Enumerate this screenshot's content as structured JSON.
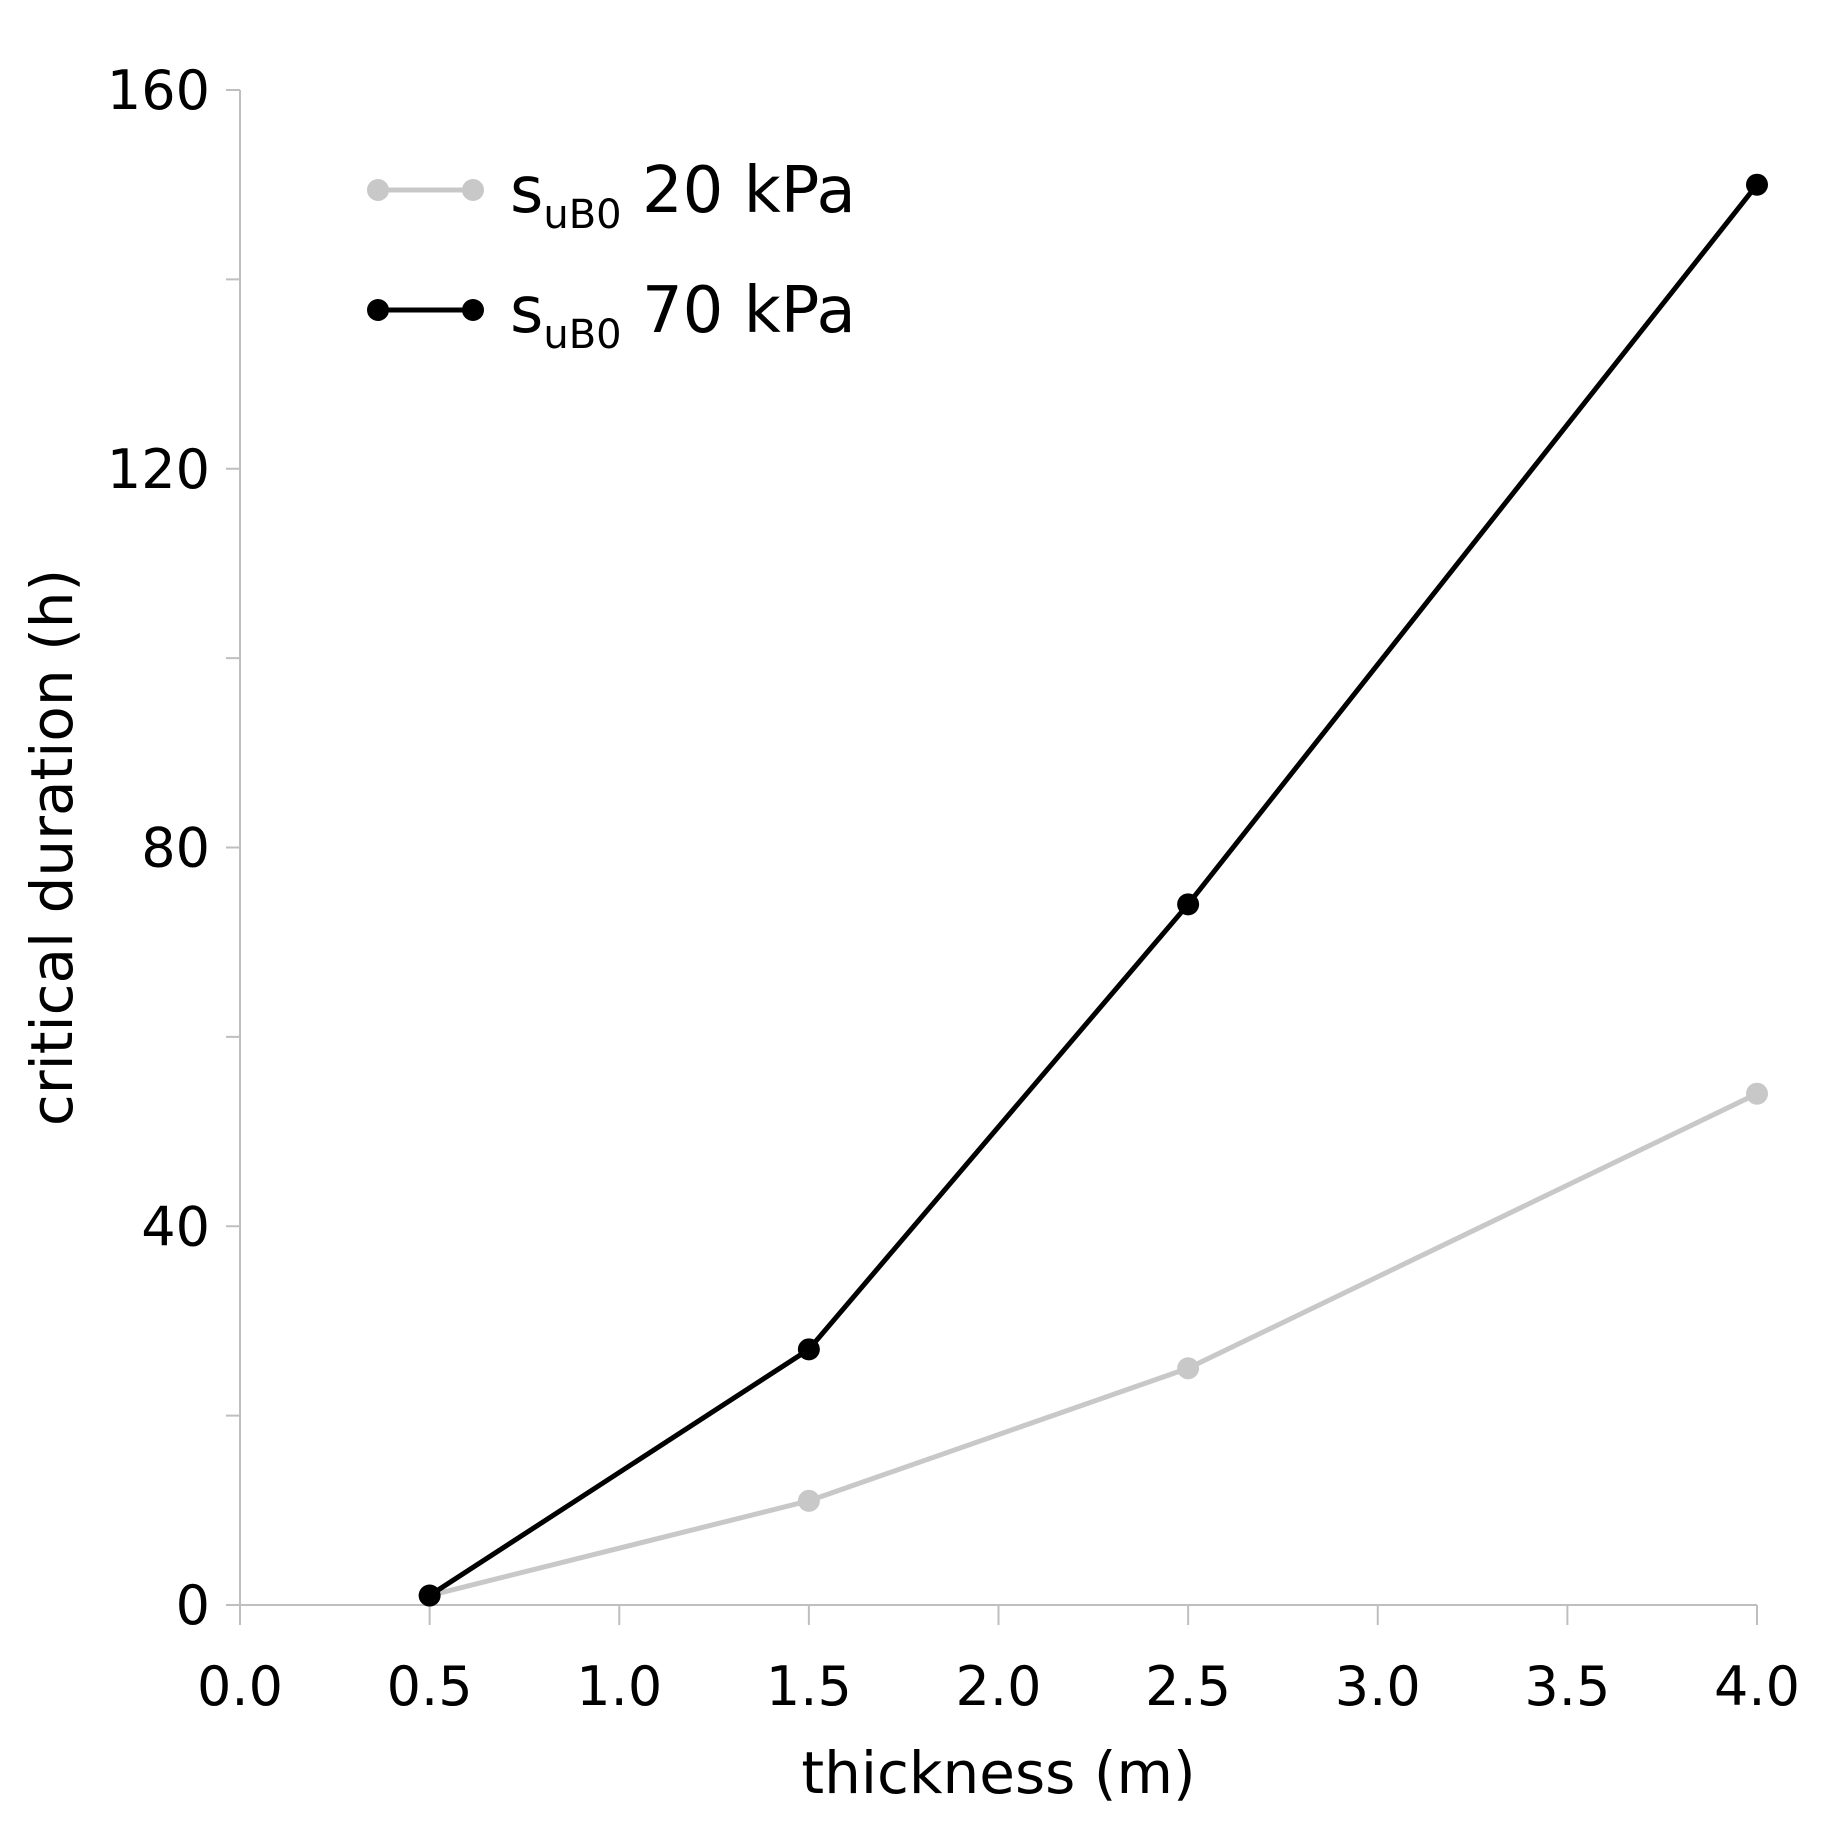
{
  "chart_data": {
    "type": "line",
    "title": "",
    "xlabel": "thickness (m)",
    "ylabel": "critical duration (h)",
    "xlim": [
      0.0,
      4.0
    ],
    "ylim": [
      0,
      160
    ],
    "x_ticks": [
      0.0,
      0.5,
      1.0,
      1.5,
      2.0,
      2.5,
      3.0,
      3.5,
      4.0
    ],
    "x_tick_labels": [
      "0.0",
      "0.5",
      "1.0",
      "1.5",
      "2.0",
      "2.5",
      "3.0",
      "3.5",
      "4.0"
    ],
    "y_ticks": [
      0,
      20,
      40,
      60,
      80,
      100,
      120,
      140,
      160
    ],
    "y_tick_labels": [
      "0",
      "",
      "40",
      "",
      "80",
      "",
      "120",
      "",
      "160"
    ],
    "grid": false,
    "legend_position": "top-left",
    "series": [
      {
        "name": "s_uB0 20 kPa",
        "label_main": "s",
        "label_sub": "uB0",
        "label_rest": " 20 kPa",
        "color": "#c8c8c8",
        "x": [
          0.5,
          1.5,
          2.5,
          4.0
        ],
        "y": [
          1,
          11,
          25,
          54
        ]
      },
      {
        "name": "s_uB0 70 kPa",
        "label_main": "s",
        "label_sub": "uB0",
        "label_rest": " 70 kPa",
        "color": "#000000",
        "x": [
          0.5,
          1.5,
          2.5,
          4.0
        ],
        "y": [
          1,
          27,
          74,
          150
        ]
      }
    ]
  }
}
